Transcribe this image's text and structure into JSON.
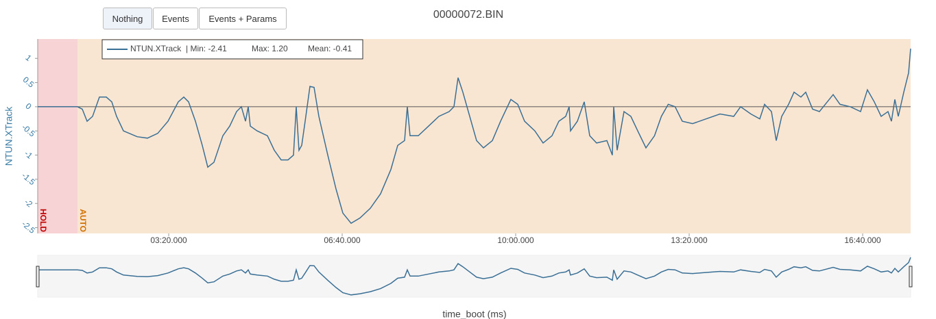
{
  "buttons": [
    "Nothing",
    "Events",
    "Events + Params"
  ],
  "chart_data": {
    "type": "line",
    "title": "00000072.BIN",
    "x_label": "time_boot (ms)",
    "y_label": "NTUN.XTrack",
    "xlim": [
      49000,
      1055300
    ],
    "ylim": [
      -2.62,
      1.4
    ],
    "xticks": [
      {
        "value": 200000,
        "label": "03:20.000"
      },
      {
        "value": 400000,
        "label": "06:40.000"
      },
      {
        "value": 600000,
        "label": "10:00.000"
      },
      {
        "value": 800000,
        "label": "13:20.000"
      },
      {
        "value": 1000000,
        "label": "16:40.000"
      }
    ],
    "yticks": [
      1,
      0.5,
      0,
      -0.5,
      -1,
      -1.5,
      -2,
      -2.5
    ],
    "legend": {
      "name": "NTUN.XTrack",
      "min": "| Min: -2.41",
      "max": "Max: 1.20",
      "mean": "Mean: -0.41"
    },
    "modes": [
      {
        "name": "HOLD",
        "start": 49000,
        "color": "#f8d3d5",
        "label_color": "#c00000"
      },
      {
        "name": "AUTO",
        "start": 94860,
        "color": "#f9e6d2",
        "label_color": "#d07000"
      }
    ],
    "x": [
      49000,
      94860,
      100394,
      105927,
      112251,
      120156,
      128061,
      134385,
      139919,
      147824,
      163634,
      175491,
      187349,
      199206,
      211064,
      217388,
      222921,
      230826,
      238731,
      245055,
      252170,
      262446,
      270351,
      278256,
      283790,
      288533,
      291695,
      294066,
      301971,
      313829,
      321734,
      329639,
      337544,
      343868,
      347030,
      350192,
      353354,
      357306,
      362840,
      367583,
      373116,
      383393,
      392879,
      400784,
      410270,
      420546,
      432404,
      444261,
      456119,
      464024,
      471929,
      475091,
      478253,
      487739,
      499596,
      511454,
      523311,
      528845,
      533588,
      539121,
      547026,
      554931,
      562836,
      573113,
      582599,
      594456,
      602361,
      610266,
      622124,
      631610,
      641886,
      649791,
      657696,
      661649,
      663230,
      671135,
      679040,
      685364,
      693269,
      705126,
      711450,
      713031,
      716984,
      724889,
      732794,
      740699,
      750195,
      760011,
      767916,
      775821,
      783726,
      792081,
      803939,
      819749,
      835559,
      851369,
      859274,
      871131,
      881408,
      886941,
      894846,
      900380,
      906704,
      914609,
      920933,
      928838,
      934371,
      942276,
      950181,
      965991,
      973896,
      985754,
      997611,
      1005516,
      1013421,
      1021326,
      1029231,
      1033184,
      1037136,
      1041089,
      1047413,
      1052946,
      1055300
    ],
    "series": [
      {
        "name": "NTUN.XTrack",
        "color": "#3a6f95",
        "values": [
          0,
          0,
          -0.05,
          -0.3,
          -0.2,
          0.2,
          0.2,
          0.1,
          -0.2,
          -0.5,
          -0.62,
          -0.65,
          -0.55,
          -0.3,
          0.1,
          0.2,
          0.1,
          -0.3,
          -0.8,
          -1.25,
          -1.15,
          -0.6,
          -0.4,
          -0.1,
          0,
          -0.3,
          0,
          -0.4,
          -0.5,
          -0.6,
          -0.9,
          -1.1,
          -1.1,
          -1.0,
          0,
          -0.9,
          -0.8,
          -0.3,
          0.42,
          0.4,
          -0.2,
          -1.0,
          -1.7,
          -2.2,
          -2.41,
          -2.3,
          -2.1,
          -1.8,
          -1.3,
          -0.8,
          -0.7,
          0,
          -0.6,
          -0.6,
          -0.4,
          -0.2,
          -0.1,
          0,
          0.6,
          0.3,
          -0.2,
          -0.7,
          -0.85,
          -0.7,
          -0.3,
          0.15,
          0.05,
          -0.3,
          -0.5,
          -0.75,
          -0.6,
          -0.3,
          -0.2,
          0,
          -0.5,
          -0.3,
          0.1,
          -0.6,
          -0.75,
          -0.7,
          -1.0,
          0,
          -0.9,
          -0.1,
          -0.2,
          -0.5,
          -0.85,
          -0.6,
          -0.2,
          0.05,
          0,
          -0.3,
          -0.35,
          -0.25,
          -0.15,
          -0.2,
          0,
          -0.15,
          -0.25,
          0.05,
          -0.1,
          -0.7,
          -0.2,
          0.05,
          0.3,
          0.2,
          0.3,
          -0.05,
          -0.1,
          0.25,
          0.05,
          0,
          -0.1,
          0.35,
          0.1,
          -0.2,
          -0.1,
          -0.3,
          0.15,
          -0.2,
          0.3,
          0.7,
          1.2
        ]
      }
    ]
  }
}
